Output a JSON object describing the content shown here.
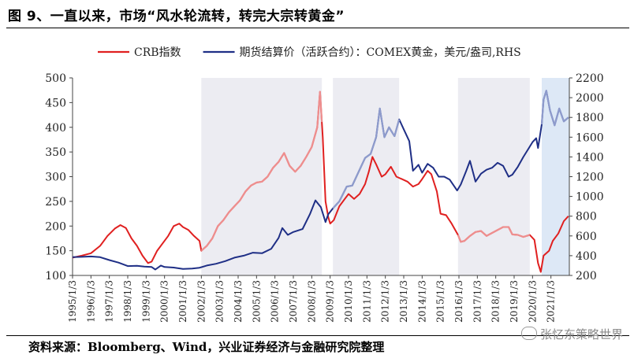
{
  "header": {
    "title": "图 9、一直以来，市场“风水轮流转，转完大宗转黄金”"
  },
  "footer": {
    "source": "资料来源：Bloomberg、Wind，兴业证券经济与金融研究院整理",
    "watermark": "张忆东策略世界"
  },
  "chart_data": {
    "type": "line",
    "title": "",
    "x_tick_labels": [
      "1995/1/3",
      "1996/1/3",
      "1997/1/3",
      "1998/1/3",
      "1999/1/3",
      "2000/1/3",
      "2001/1/3",
      "2002/1/3",
      "2003/1/3",
      "2004/1/3",
      "2005/1/3",
      "2006/1/3",
      "2007/1/3",
      "2008/1/3",
      "2009/1/3",
      "2010/1/3",
      "2011/1/3",
      "2012/1/3",
      "2013/1/3",
      "2014/1/3",
      "2015/1/3",
      "2016/1/3",
      "2017/1/3",
      "2018/1/3",
      "2019/1/3",
      "2020/1/3",
      "2021/1/3"
    ],
    "y_left": {
      "lim": [
        100,
        500
      ],
      "ticks": [
        100,
        150,
        200,
        250,
        300,
        350,
        400,
        450,
        500
      ]
    },
    "y_right": {
      "lim": [
        200,
        2200
      ],
      "ticks": [
        200,
        400,
        600,
        800,
        1000,
        1200,
        1400,
        1600,
        1800,
        2000,
        2200
      ]
    },
    "legend_placement": "top-left",
    "shaded_periods": [
      {
        "start": 2002.0,
        "end": 2008.55,
        "color": "#ececf2"
      },
      {
        "start": 2009.15,
        "end": 2012.75,
        "color": "#ececf2"
      },
      {
        "start": 2015.95,
        "end": 2019.85,
        "color": "#ececf2"
      },
      {
        "start": 2020.5,
        "end": 2022.0,
        "color": "#dde8f6"
      }
    ],
    "highlight_periods": [
      {
        "series": 0,
        "start": 2002.0,
        "end": 2008.55,
        "color": "#ee8e8e"
      },
      {
        "series": 1,
        "start": 2009.15,
        "end": 2012.75,
        "color": "#8e9bcc"
      },
      {
        "series": 0,
        "start": 2015.95,
        "end": 2019.85,
        "color": "#ee8e8e"
      },
      {
        "series": 1,
        "start": 2020.5,
        "end": 2022.0,
        "color": "#8e9bcc"
      }
    ],
    "series": [
      {
        "name": "CRB指数",
        "axis": "left",
        "color": "#e02020",
        "points": [
          [
            1995.0,
            136
          ],
          [
            1995.5,
            140
          ],
          [
            1996.0,
            145
          ],
          [
            1996.5,
            160
          ],
          [
            1996.9,
            180
          ],
          [
            1997.3,
            195
          ],
          [
            1997.6,
            202
          ],
          [
            1997.9,
            196
          ],
          [
            1998.2,
            175
          ],
          [
            1998.5,
            160
          ],
          [
            1998.8,
            140
          ],
          [
            1999.1,
            125
          ],
          [
            1999.3,
            128
          ],
          [
            1999.6,
            150
          ],
          [
            1999.9,
            165
          ],
          [
            2000.2,
            180
          ],
          [
            2000.5,
            200
          ],
          [
            2000.8,
            205
          ],
          [
            2001.0,
            198
          ],
          [
            2001.3,
            192
          ],
          [
            2001.6,
            180
          ],
          [
            2001.9,
            170
          ],
          [
            2002.0,
            150
          ],
          [
            2002.3,
            160
          ],
          [
            2002.6,
            175
          ],
          [
            2002.9,
            200
          ],
          [
            2003.2,
            212
          ],
          [
            2003.5,
            228
          ],
          [
            2003.8,
            240
          ],
          [
            2004.1,
            252
          ],
          [
            2004.4,
            270
          ],
          [
            2004.7,
            282
          ],
          [
            2005.0,
            288
          ],
          [
            2005.3,
            290
          ],
          [
            2005.6,
            300
          ],
          [
            2005.9,
            318
          ],
          [
            2006.2,
            330
          ],
          [
            2006.5,
            348
          ],
          [
            2006.8,
            322
          ],
          [
            2007.1,
            310
          ],
          [
            2007.4,
            322
          ],
          [
            2007.7,
            340
          ],
          [
            2008.0,
            360
          ],
          [
            2008.3,
            400
          ],
          [
            2008.45,
            472
          ],
          [
            2008.6,
            380
          ],
          [
            2008.75,
            250
          ],
          [
            2008.9,
            218
          ],
          [
            2009.0,
            205
          ],
          [
            2009.2,
            212
          ],
          [
            2009.5,
            240
          ],
          [
            2009.8,
            255
          ],
          [
            2010.0,
            265
          ],
          [
            2010.3,
            255
          ],
          [
            2010.6,
            265
          ],
          [
            2010.9,
            285
          ],
          [
            2011.1,
            310
          ],
          [
            2011.3,
            340
          ],
          [
            2011.5,
            325
          ],
          [
            2011.8,
            300
          ],
          [
            2012.0,
            305
          ],
          [
            2012.3,
            320
          ],
          [
            2012.6,
            300
          ],
          [
            2012.9,
            295
          ],
          [
            2013.2,
            290
          ],
          [
            2013.5,
            280
          ],
          [
            2013.8,
            285
          ],
          [
            2014.0,
            295
          ],
          [
            2014.3,
            312
          ],
          [
            2014.5,
            305
          ],
          [
            2014.8,
            270
          ],
          [
            2015.0,
            225
          ],
          [
            2015.3,
            222
          ],
          [
            2015.6,
            205
          ],
          [
            2015.95,
            182
          ],
          [
            2016.1,
            168
          ],
          [
            2016.3,
            170
          ],
          [
            2016.6,
            180
          ],
          [
            2016.9,
            188
          ],
          [
            2017.2,
            190
          ],
          [
            2017.5,
            180
          ],
          [
            2017.8,
            186
          ],
          [
            2018.1,
            192
          ],
          [
            2018.4,
            198
          ],
          [
            2018.7,
            198
          ],
          [
            2018.9,
            183
          ],
          [
            2019.2,
            182
          ],
          [
            2019.5,
            178
          ],
          [
            2019.85,
            182
          ],
          [
            2020.1,
            172
          ],
          [
            2020.3,
            125
          ],
          [
            2020.45,
            107
          ],
          [
            2020.6,
            140
          ],
          [
            2020.9,
            150
          ],
          [
            2021.1,
            170
          ],
          [
            2021.4,
            185
          ],
          [
            2021.7,
            210
          ],
          [
            2021.95,
            220
          ]
        ]
      },
      {
        "name": "期货结算价（活跃合约）：COMEX黄金，美元/盎司,RHS",
        "axis": "right",
        "color": "#1f2f86",
        "points": [
          [
            1995.0,
            385
          ],
          [
            1995.5,
            388
          ],
          [
            1996.0,
            392
          ],
          [
            1996.5,
            385
          ],
          [
            1997.0,
            355
          ],
          [
            1997.5,
            330
          ],
          [
            1998.0,
            295
          ],
          [
            1998.5,
            298
          ],
          [
            1998.9,
            290
          ],
          [
            1999.3,
            285
          ],
          [
            1999.5,
            260
          ],
          [
            1999.8,
            300
          ],
          [
            2000.0,
            285
          ],
          [
            2000.5,
            280
          ],
          [
            2001.0,
            265
          ],
          [
            2001.5,
            270
          ],
          [
            2001.9,
            278
          ],
          [
            2002.3,
            300
          ],
          [
            2002.8,
            318
          ],
          [
            2003.3,
            345
          ],
          [
            2003.8,
            380
          ],
          [
            2004.3,
            400
          ],
          [
            2004.8,
            430
          ],
          [
            2005.3,
            425
          ],
          [
            2005.8,
            470
          ],
          [
            2006.2,
            580
          ],
          [
            2006.4,
            680
          ],
          [
            2006.7,
            610
          ],
          [
            2007.0,
            640
          ],
          [
            2007.5,
            670
          ],
          [
            2007.9,
            820
          ],
          [
            2008.2,
            960
          ],
          [
            2008.5,
            890
          ],
          [
            2008.75,
            740
          ],
          [
            2008.9,
            820
          ],
          [
            2009.15,
            880
          ],
          [
            2009.5,
            950
          ],
          [
            2009.9,
            1100
          ],
          [
            2010.2,
            1110
          ],
          [
            2010.5,
            1230
          ],
          [
            2010.9,
            1390
          ],
          [
            2011.2,
            1430
          ],
          [
            2011.5,
            1600
          ],
          [
            2011.7,
            1890
          ],
          [
            2011.95,
            1600
          ],
          [
            2012.2,
            1700
          ],
          [
            2012.5,
            1610
          ],
          [
            2012.75,
            1780
          ],
          [
            2013.0,
            1680
          ],
          [
            2013.3,
            1560
          ],
          [
            2013.5,
            1260
          ],
          [
            2013.8,
            1320
          ],
          [
            2014.0,
            1240
          ],
          [
            2014.3,
            1330
          ],
          [
            2014.6,
            1290
          ],
          [
            2014.9,
            1200
          ],
          [
            2015.2,
            1200
          ],
          [
            2015.5,
            1170
          ],
          [
            2015.9,
            1060
          ],
          [
            2016.1,
            1120
          ],
          [
            2016.4,
            1260
          ],
          [
            2016.6,
            1360
          ],
          [
            2016.9,
            1150
          ],
          [
            2017.2,
            1230
          ],
          [
            2017.5,
            1270
          ],
          [
            2017.8,
            1290
          ],
          [
            2018.1,
            1340
          ],
          [
            2018.4,
            1310
          ],
          [
            2018.7,
            1200
          ],
          [
            2018.9,
            1220
          ],
          [
            2019.2,
            1300
          ],
          [
            2019.5,
            1400
          ],
          [
            2019.8,
            1490
          ],
          [
            2020.0,
            1550
          ],
          [
            2020.2,
            1590
          ],
          [
            2020.3,
            1490
          ],
          [
            2020.5,
            1730
          ],
          [
            2020.6,
            1980
          ],
          [
            2020.75,
            2070
          ],
          [
            2020.95,
            1870
          ],
          [
            2021.2,
            1720
          ],
          [
            2021.45,
            1890
          ],
          [
            2021.7,
            1760
          ],
          [
            2021.95,
            1800
          ]
        ]
      }
    ]
  }
}
